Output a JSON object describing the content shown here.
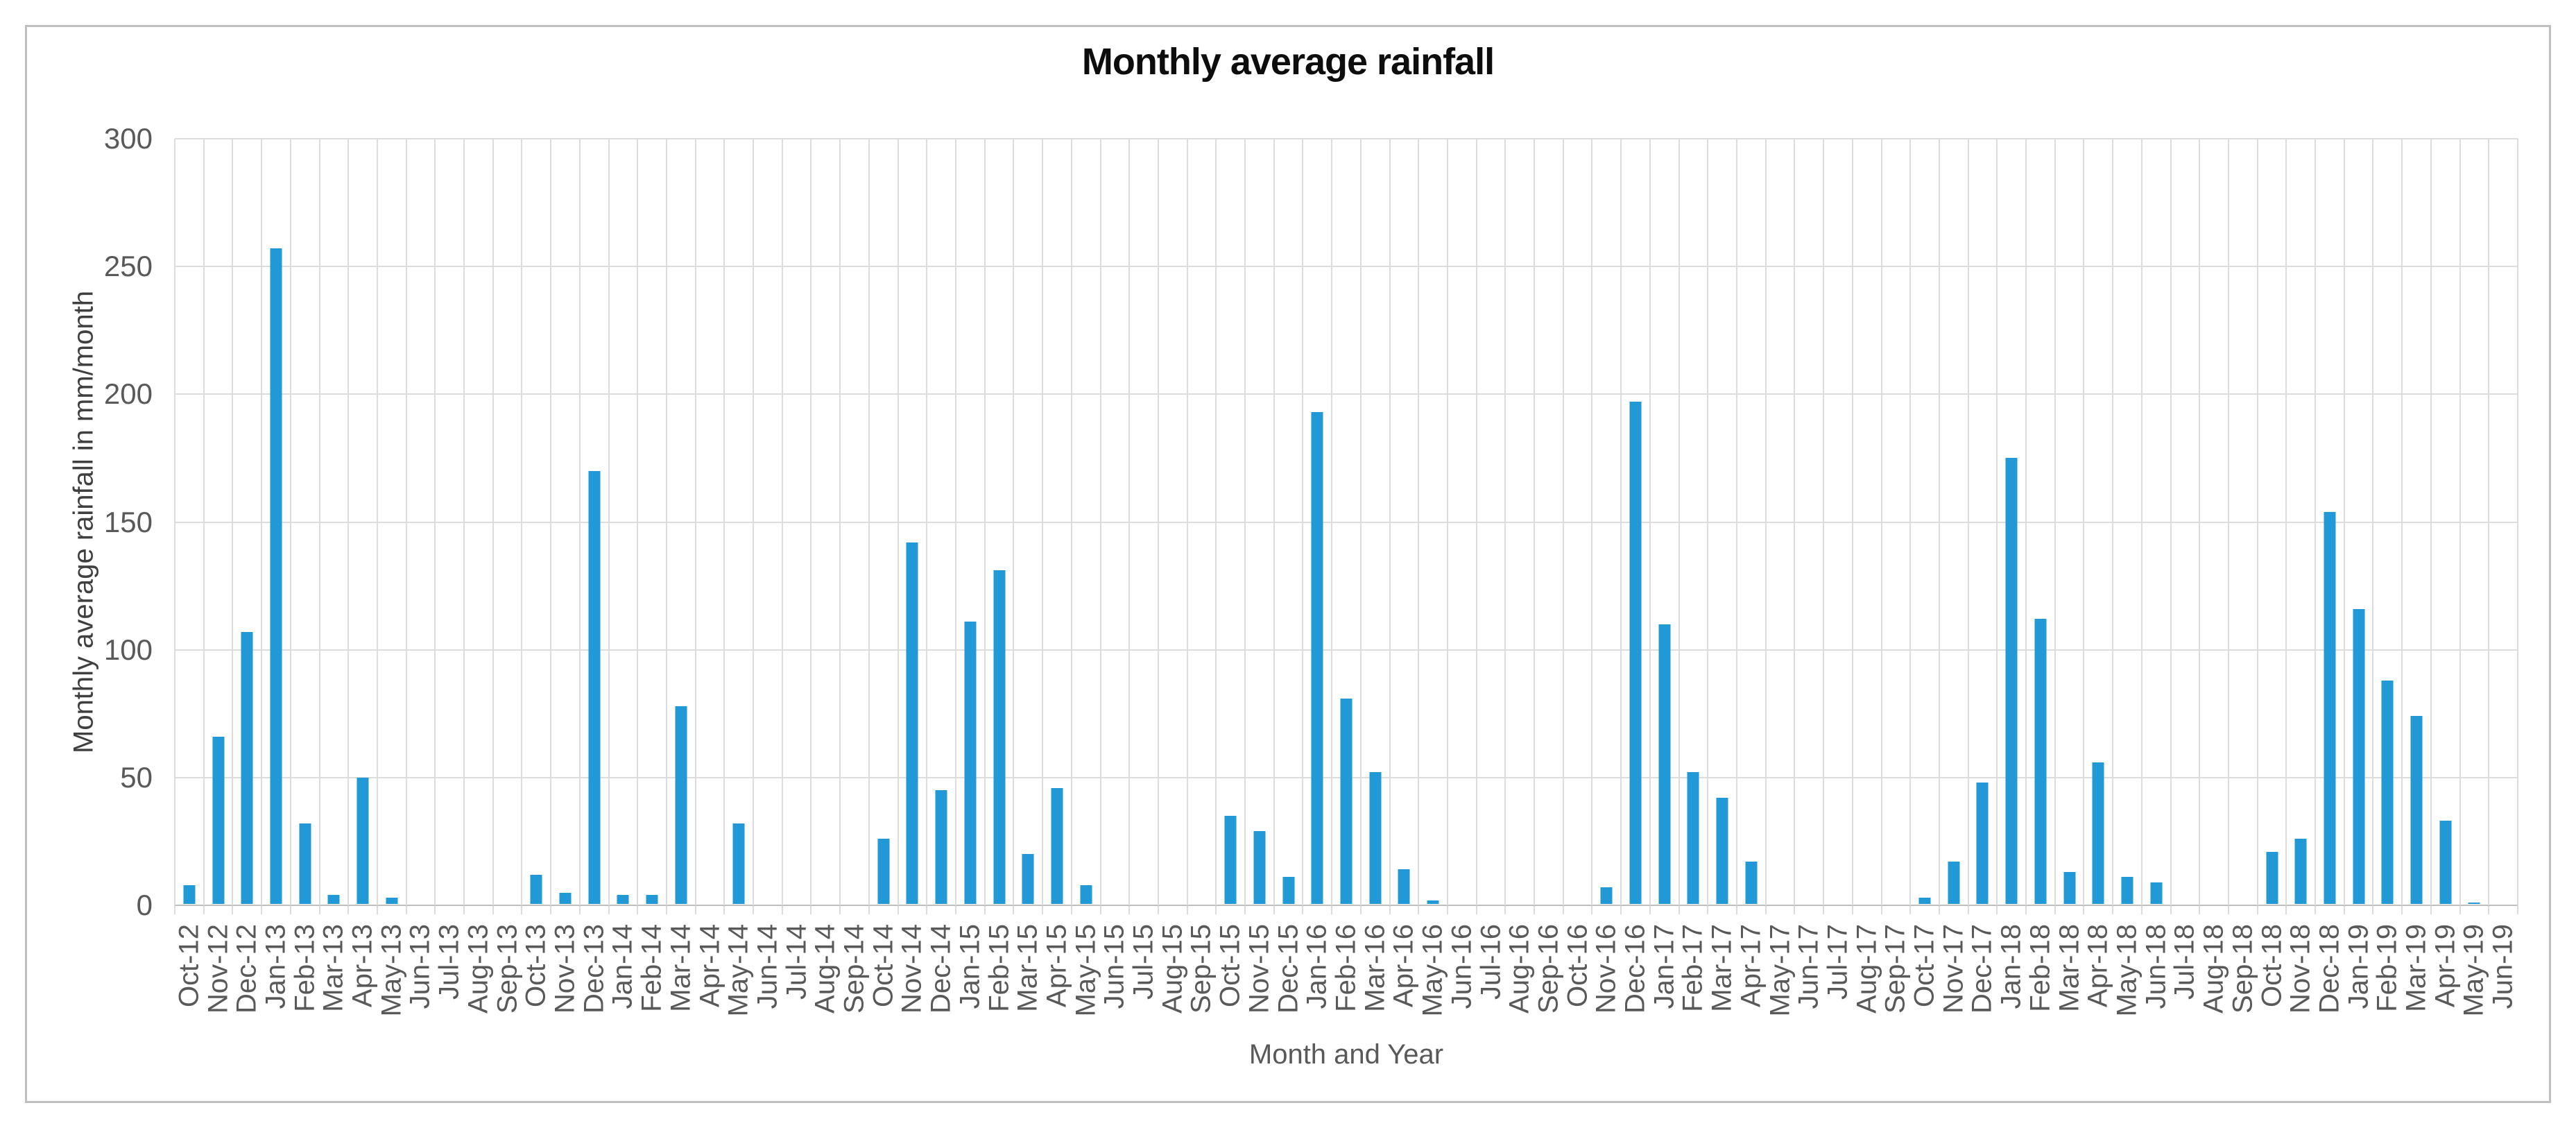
{
  "chart_data": {
    "type": "bar",
    "title": "Monthly average rainfall",
    "xlabel": "Month and Year",
    "ylabel": "Monthly average rainfall in mm/month",
    "ylim": [
      0,
      300
    ],
    "yticks": [
      0,
      50,
      100,
      150,
      200,
      250,
      300
    ],
    "grid": true,
    "legend": "none",
    "categories": [
      "Oct-12",
      "Nov-12",
      "Dec-12",
      "Jan-13",
      "Feb-13",
      "Mar-13",
      "Apr-13",
      "May-13",
      "Jun-13",
      "Jul-13",
      "Aug-13",
      "Sep-13",
      "Oct-13",
      "Nov-13",
      "Dec-13",
      "Jan-14",
      "Feb-14",
      "Mar-14",
      "Apr-14",
      "May-14",
      "Jun-14",
      "Jul-14",
      "Aug-14",
      "Sep-14",
      "Oct-14",
      "Nov-14",
      "Dec-14",
      "Jan-15",
      "Feb-15",
      "Mar-15",
      "Apr-15",
      "May-15",
      "Jun-15",
      "Jul-15",
      "Aug-15",
      "Sep-15",
      "Oct-15",
      "Nov-15",
      "Dec-15",
      "Jan-16",
      "Feb-16",
      "Mar-16",
      "Apr-16",
      "May-16",
      "Jun-16",
      "Jul-16",
      "Aug-16",
      "Sep-16",
      "Oct-16",
      "Nov-16",
      "Dec-16",
      "Jan-17",
      "Feb-17",
      "Mar-17",
      "Apr-17",
      "May-17",
      "Jun-17",
      "Jul-17",
      "Aug-17",
      "Sep-17",
      "Oct-17",
      "Nov-17",
      "Dec-17",
      "Jan-18",
      "Feb-18",
      "Mar-18",
      "Apr-18",
      "May-18",
      "Jun-18",
      "Jul-18",
      "Aug-18",
      "Sep-18",
      "Oct-18",
      "Nov-18",
      "Dec-18",
      "Jan-19",
      "Feb-19",
      "Mar-19",
      "Apr-19",
      "May-19",
      "Jun-19"
    ],
    "values": [
      8,
      66,
      107,
      257,
      32,
      4,
      50,
      3,
      0,
      0,
      0,
      0,
      12,
      5,
      170,
      4,
      4,
      78,
      0,
      32,
      0,
      0,
      0,
      0,
      26,
      142,
      45,
      111,
      131,
      20,
      46,
      8,
      0,
      0,
      0,
      0,
      35,
      29,
      11,
      193,
      81,
      52,
      14,
      2,
      0,
      0,
      0,
      0,
      0,
      7,
      197,
      110,
      52,
      42,
      17,
      0,
      0,
      0,
      0,
      0,
      3,
      17,
      48,
      175,
      112,
      13,
      56,
      11,
      9,
      0,
      0,
      0,
      21,
      26,
      154,
      116,
      88,
      74,
      33,
      1,
      0
    ],
    "colors": {
      "bar": "#2199d6",
      "gridline": "#dcdcdc",
      "axis_line": "#bfbfbf",
      "tick_label": "#595959",
      "title": "#0d0d0d",
      "frame_border": "#bfbfbf"
    }
  }
}
